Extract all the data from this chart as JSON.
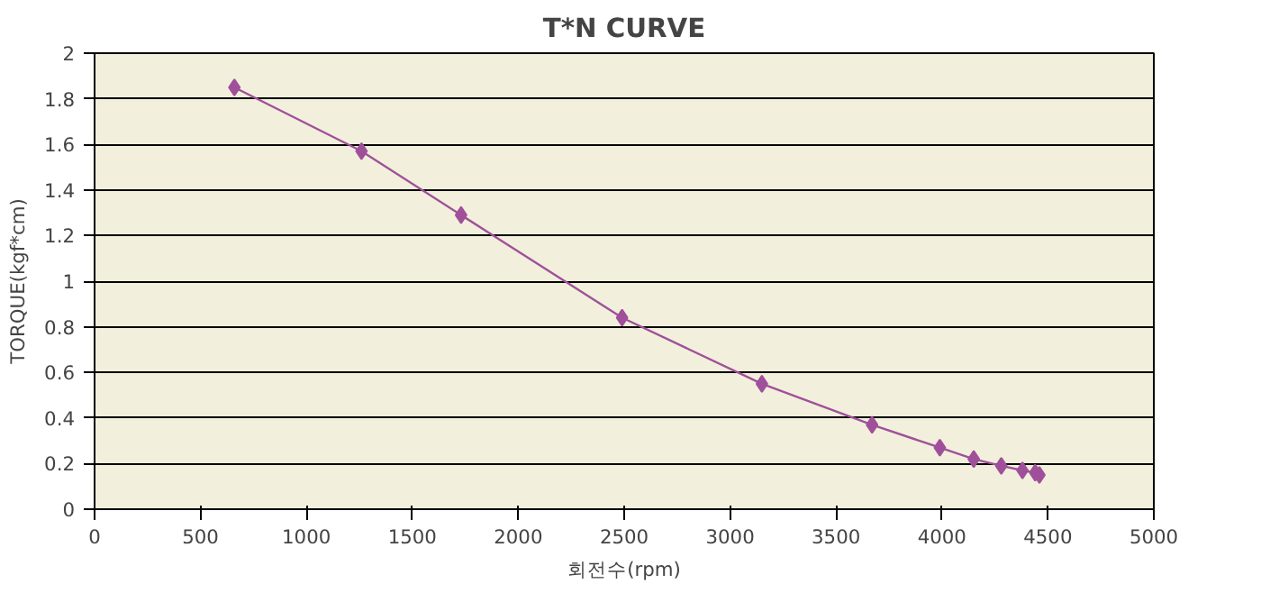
{
  "chart_data": {
    "type": "line",
    "title": "T*N CURVE",
    "xlabel": "회전수(rpm)",
    "ylabel": "TORQUE(kgf*cm)",
    "x": [
      660,
      1260,
      1730,
      2490,
      3150,
      3670,
      3990,
      4150,
      4280,
      4380,
      4440,
      4460
    ],
    "series": [
      {
        "color": "#a0509a",
        "values": [
          1.85,
          1.57,
          1.29,
          0.84,
          0.55,
          0.37,
          0.27,
          0.22,
          0.19,
          0.17,
          0.16,
          0.15
        ]
      }
    ],
    "xlim": [
      0,
      5000
    ],
    "xticks": [
      0,
      500,
      1000,
      1500,
      2000,
      2500,
      3000,
      3500,
      4000,
      4500,
      5000
    ],
    "ylim": [
      0,
      2
    ],
    "yticks": [
      0,
      {
        "value": 0.2,
        "label": "0.2"
      },
      {
        "value": 0.4,
        "label": "0.4"
      },
      {
        "value": 0.6,
        "label": "0.6"
      },
      {
        "value": 0.8,
        "label": "0.8"
      },
      1,
      {
        "value": 1.2,
        "label": "1.2"
      },
      {
        "value": 1.4,
        "label": "1.4"
      },
      {
        "value": 1.6,
        "label": "1.6"
      },
      {
        "value": 1.8,
        "label": "1.8"
      },
      2
    ],
    "grid": "y",
    "marker": "diamond",
    "line_style": "solid"
  }
}
